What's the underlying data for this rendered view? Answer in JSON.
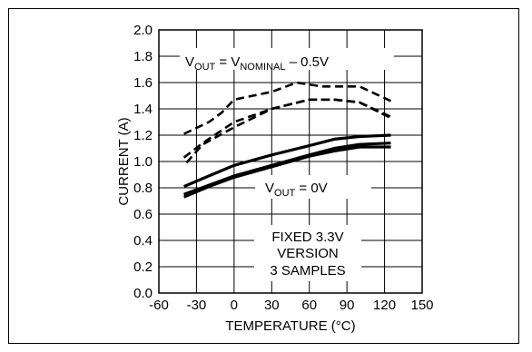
{
  "chart_data": {
    "type": "line",
    "xlabel": "TEMPERATURE (°C)",
    "ylabel": "CURRENT (A)",
    "xlim": [
      -60,
      150
    ],
    "ylim": [
      0.0,
      2.0
    ],
    "x_ticks": [
      "-60",
      "-30",
      "0",
      "30",
      "60",
      "90",
      "120",
      "150"
    ],
    "y_ticks": [
      "0.0",
      "0.2",
      "0.4",
      "0.6",
      "0.8",
      "1.0",
      "1.2",
      "1.4",
      "1.6",
      "1.8",
      "2.0"
    ],
    "grid": true,
    "annotations": {
      "vout_top": {
        "v1": "V",
        "s1": "OUT",
        "mid": " = V",
        "s2": "NOMINAL",
        "tail": " – 0.5V"
      },
      "vout_bottom": {
        "v1": "V",
        "s1": "OUT",
        "tail": " = 0V"
      },
      "fixed_lines": [
        "FIXED 3.3V",
        "VERSION",
        "3 SAMPLES"
      ]
    },
    "series": [
      {
        "style": "dashed",
        "x": [
          -40,
          -20,
          -10,
          0,
          30,
          50,
          70,
          100,
          125
        ],
        "y": [
          1.21,
          1.3,
          1.37,
          1.47,
          1.53,
          1.6,
          1.57,
          1.57,
          1.46
        ]
      },
      {
        "style": "dashed",
        "x": [
          -40,
          -25,
          0,
          30,
          60,
          80,
          100,
          125
        ],
        "y": [
          1.03,
          1.14,
          1.3,
          1.4,
          1.47,
          1.47,
          1.45,
          1.34
        ]
      },
      {
        "style": "dashed",
        "x": [
          -38,
          -25,
          0,
          30,
          60,
          80,
          100,
          125
        ],
        "y": [
          0.99,
          1.13,
          1.26,
          1.4,
          1.47,
          1.47,
          1.45,
          1.33
        ]
      },
      {
        "style": "solid",
        "x": [
          -40,
          -20,
          0,
          30,
          60,
          80,
          100,
          125
        ],
        "y": [
          0.81,
          0.89,
          0.97,
          1.05,
          1.12,
          1.17,
          1.19,
          1.2
        ]
      },
      {
        "style": "solid",
        "x": [
          -40,
          -20,
          0,
          30,
          60,
          80,
          100,
          125
        ],
        "y": [
          0.75,
          0.82,
          0.89,
          0.97,
          1.05,
          1.1,
          1.13,
          1.14
        ]
      },
      {
        "style": "solid",
        "x": [
          -40,
          -20,
          0,
          30,
          60,
          80,
          100,
          125
        ],
        "y": [
          0.73,
          0.81,
          0.88,
          0.96,
          1.04,
          1.08,
          1.11,
          1.11
        ]
      }
    ]
  }
}
